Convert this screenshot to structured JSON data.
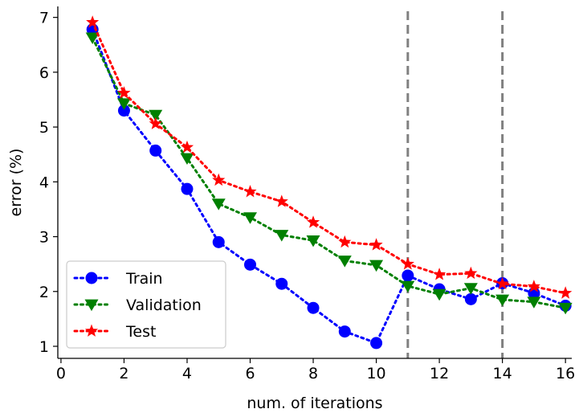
{
  "chart_data": {
    "type": "line",
    "xlabel": "num. of iterations",
    "ylabel": "error (%)",
    "xlim": [
      -0.1,
      16.2
    ],
    "ylim": [
      0.78,
      7.2
    ],
    "xticks": [
      0,
      2,
      4,
      6,
      8,
      10,
      12,
      14,
      16
    ],
    "yticks": [
      1,
      2,
      3,
      4,
      5,
      6,
      7
    ],
    "grid": false,
    "legend_position": "lower-left",
    "vertical_lines": [
      {
        "x": 11,
        "color": "#808080",
        "style": "dashed"
      },
      {
        "x": 14,
        "color": "#808080",
        "style": "dashed"
      }
    ],
    "x": [
      1,
      2,
      3,
      4,
      5,
      6,
      7,
      8,
      9,
      10,
      11,
      12,
      13,
      14,
      15,
      16
    ],
    "series": [
      {
        "name": "Train",
        "color": "#0000ff",
        "marker": "circle",
        "values": [
          6.78,
          5.3,
          4.57,
          3.87,
          2.9,
          2.49,
          2.14,
          1.7,
          1.27,
          1.06,
          2.29,
          2.04,
          1.86,
          2.15,
          1.97,
          1.74
        ]
      },
      {
        "name": "Validation",
        "color": "#008000",
        "marker": "triangle-down",
        "values": [
          6.63,
          5.43,
          5.22,
          4.43,
          3.6,
          3.35,
          3.03,
          2.93,
          2.56,
          2.48,
          2.1,
          1.95,
          2.06,
          1.85,
          1.81,
          1.7
        ]
      },
      {
        "name": "Test",
        "color": "#ff0000",
        "marker": "star",
        "values": [
          6.91,
          5.62,
          5.06,
          4.63,
          4.03,
          3.82,
          3.64,
          3.26,
          2.9,
          2.85,
          2.5,
          2.31,
          2.33,
          2.14,
          2.09,
          1.97
        ]
      }
    ]
  }
}
